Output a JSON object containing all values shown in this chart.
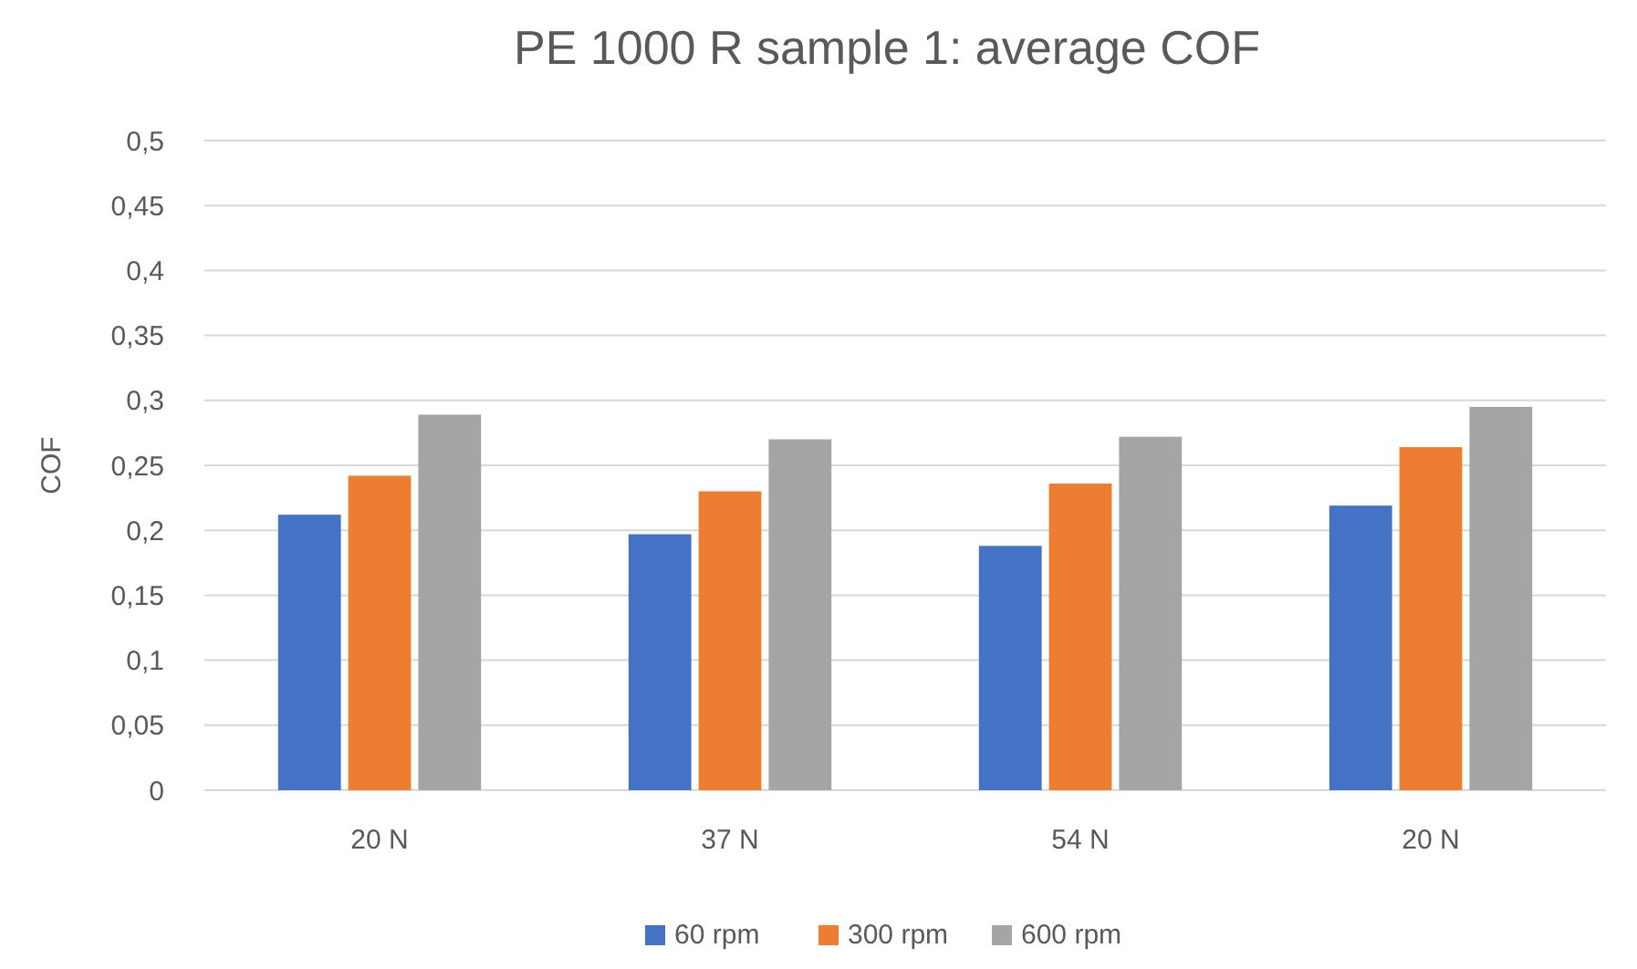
{
  "chart_data": {
    "type": "bar",
    "title": "PE 1000 R sample 1: average COF",
    "ylabel": "COF",
    "categories": [
      "20 N",
      "37 N",
      "54 N",
      "20 N"
    ],
    "series": [
      {
        "name": "60 rpm",
        "color": "#4472c4",
        "values": [
          0.212,
          0.197,
          0.188,
          0.219
        ]
      },
      {
        "name": "300 rpm",
        "color": "#ed7d31",
        "values": [
          0.242,
          0.23,
          0.236,
          0.264
        ]
      },
      {
        "name": "600 rpm",
        "color": "#a5a5a5",
        "values": [
          0.289,
          0.27,
          0.272,
          0.295
        ]
      }
    ],
    "ylim": [
      0,
      0.5
    ],
    "yticks": [
      0,
      {
        "value": 0.05,
        "label": "0,05"
      },
      {
        "value": 0.1,
        "label": "0,1"
      },
      {
        "value": 0.15,
        "label": "0,15"
      },
      {
        "value": 0.2,
        "label": "0,2"
      },
      {
        "value": 0.25,
        "label": "0,25"
      },
      {
        "value": 0.3,
        "label": "0,3"
      },
      {
        "value": 0.35,
        "label": "0,35"
      },
      {
        "value": 0.4,
        "label": "0,4"
      },
      {
        "value": 0.45,
        "label": "0,45"
      },
      {
        "value": 0.5,
        "label": "0,5"
      }
    ],
    "grid": "y",
    "legend": "bottom"
  }
}
